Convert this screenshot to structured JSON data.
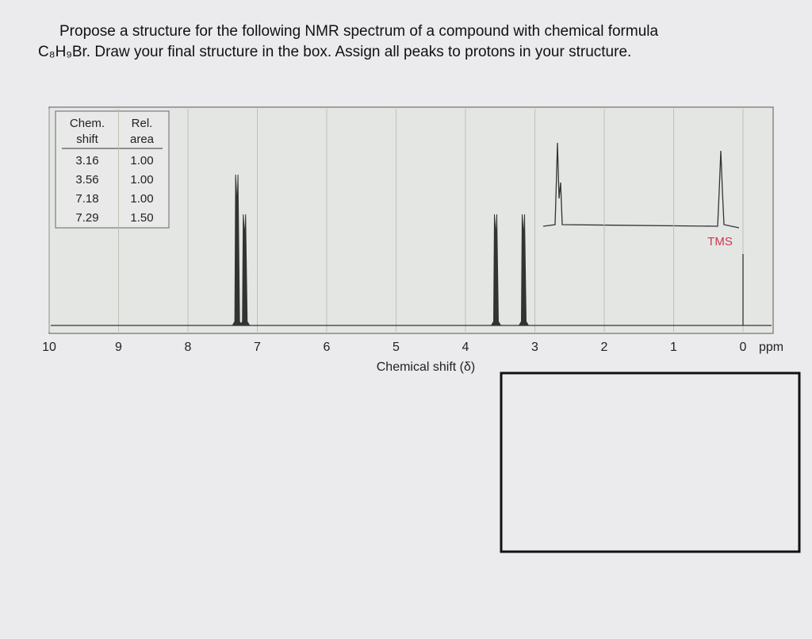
{
  "question": {
    "line1": "Propose a structure for the following NMR spectrum of a compound with chemical formula",
    "line2": "C₈H₉Br. Draw your final structure in the box. Assign all peaks to protons in your structure."
  },
  "table": {
    "headers": [
      "Chem. shift",
      "Rel. area"
    ],
    "rows": [
      [
        {
          "value": 3.16,
          "label": "3.16"
        },
        {
          "value": 1.0,
          "label": "1.00"
        }
      ],
      [
        {
          "value": 3.56,
          "label": "3.56"
        },
        {
          "value": 1.0,
          "label": "1.00"
        }
      ],
      [
        {
          "value": 7.18,
          "label": "7.18"
        },
        {
          "value": 1.0,
          "label": "1.00"
        }
      ],
      [
        {
          "value": 7.29,
          "label": "7.29"
        },
        {
          "value": 1.5,
          "label": "1.50"
        }
      ]
    ]
  },
  "spectrum": {
    "xlim": [
      10,
      0
    ],
    "xticks": [
      10,
      9,
      8,
      7,
      6,
      5,
      4,
      3,
      2,
      1,
      0
    ],
    "unit": "ppm",
    "x_label": "Chemical shift (δ)",
    "reference_label": "TMS"
  }
}
